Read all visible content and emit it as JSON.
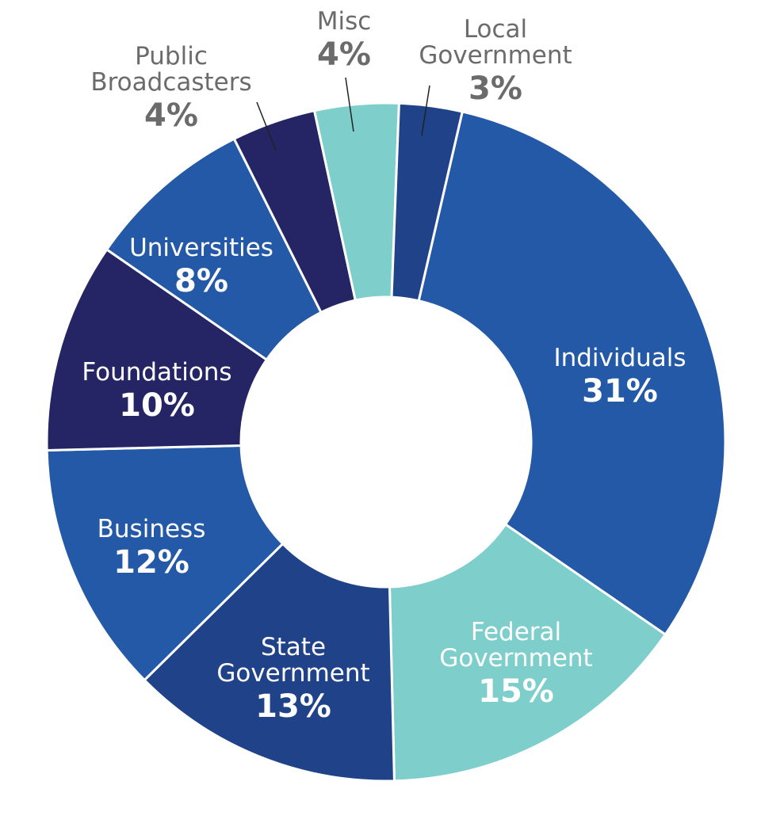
{
  "chart_data": {
    "type": "pie",
    "variant": "donut",
    "title": "",
    "slices": [
      {
        "label": [
          "Individuals"
        ],
        "pct_label": "31%",
        "value": 31,
        "color": "#2359a7"
      },
      {
        "label": [
          "Federal",
          "Government"
        ],
        "pct_label": "15%",
        "value": 15,
        "color": "#7ecfcb"
      },
      {
        "label": [
          "State",
          "Government"
        ],
        "pct_label": "13%",
        "value": 13,
        "color": "#1f4288"
      },
      {
        "label": [
          "Business"
        ],
        "pct_label": "12%",
        "value": 12,
        "color": "#2359a7"
      },
      {
        "label": [
          "Foundations"
        ],
        "pct_label": "10%",
        "value": 10,
        "color": "#252565"
      },
      {
        "label": [
          "Universities"
        ],
        "pct_label": "8%",
        "value": 8,
        "color": "#2359a7"
      },
      {
        "label": [
          "Public",
          "Broadcasters"
        ],
        "pct_label": "4%",
        "value": 4,
        "color": "#252565"
      },
      {
        "label": [
          "Misc"
        ],
        "pct_label": "4%",
        "value": 4,
        "color": "#7ecfcb"
      },
      {
        "label": [
          "Local",
          "Government"
        ],
        "pct_label": "3%",
        "value": 3,
        "color": "#1f4288"
      }
    ],
    "label_colors": {
      "inside": "#ffffff",
      "outside": "#6b6b6b"
    }
  }
}
